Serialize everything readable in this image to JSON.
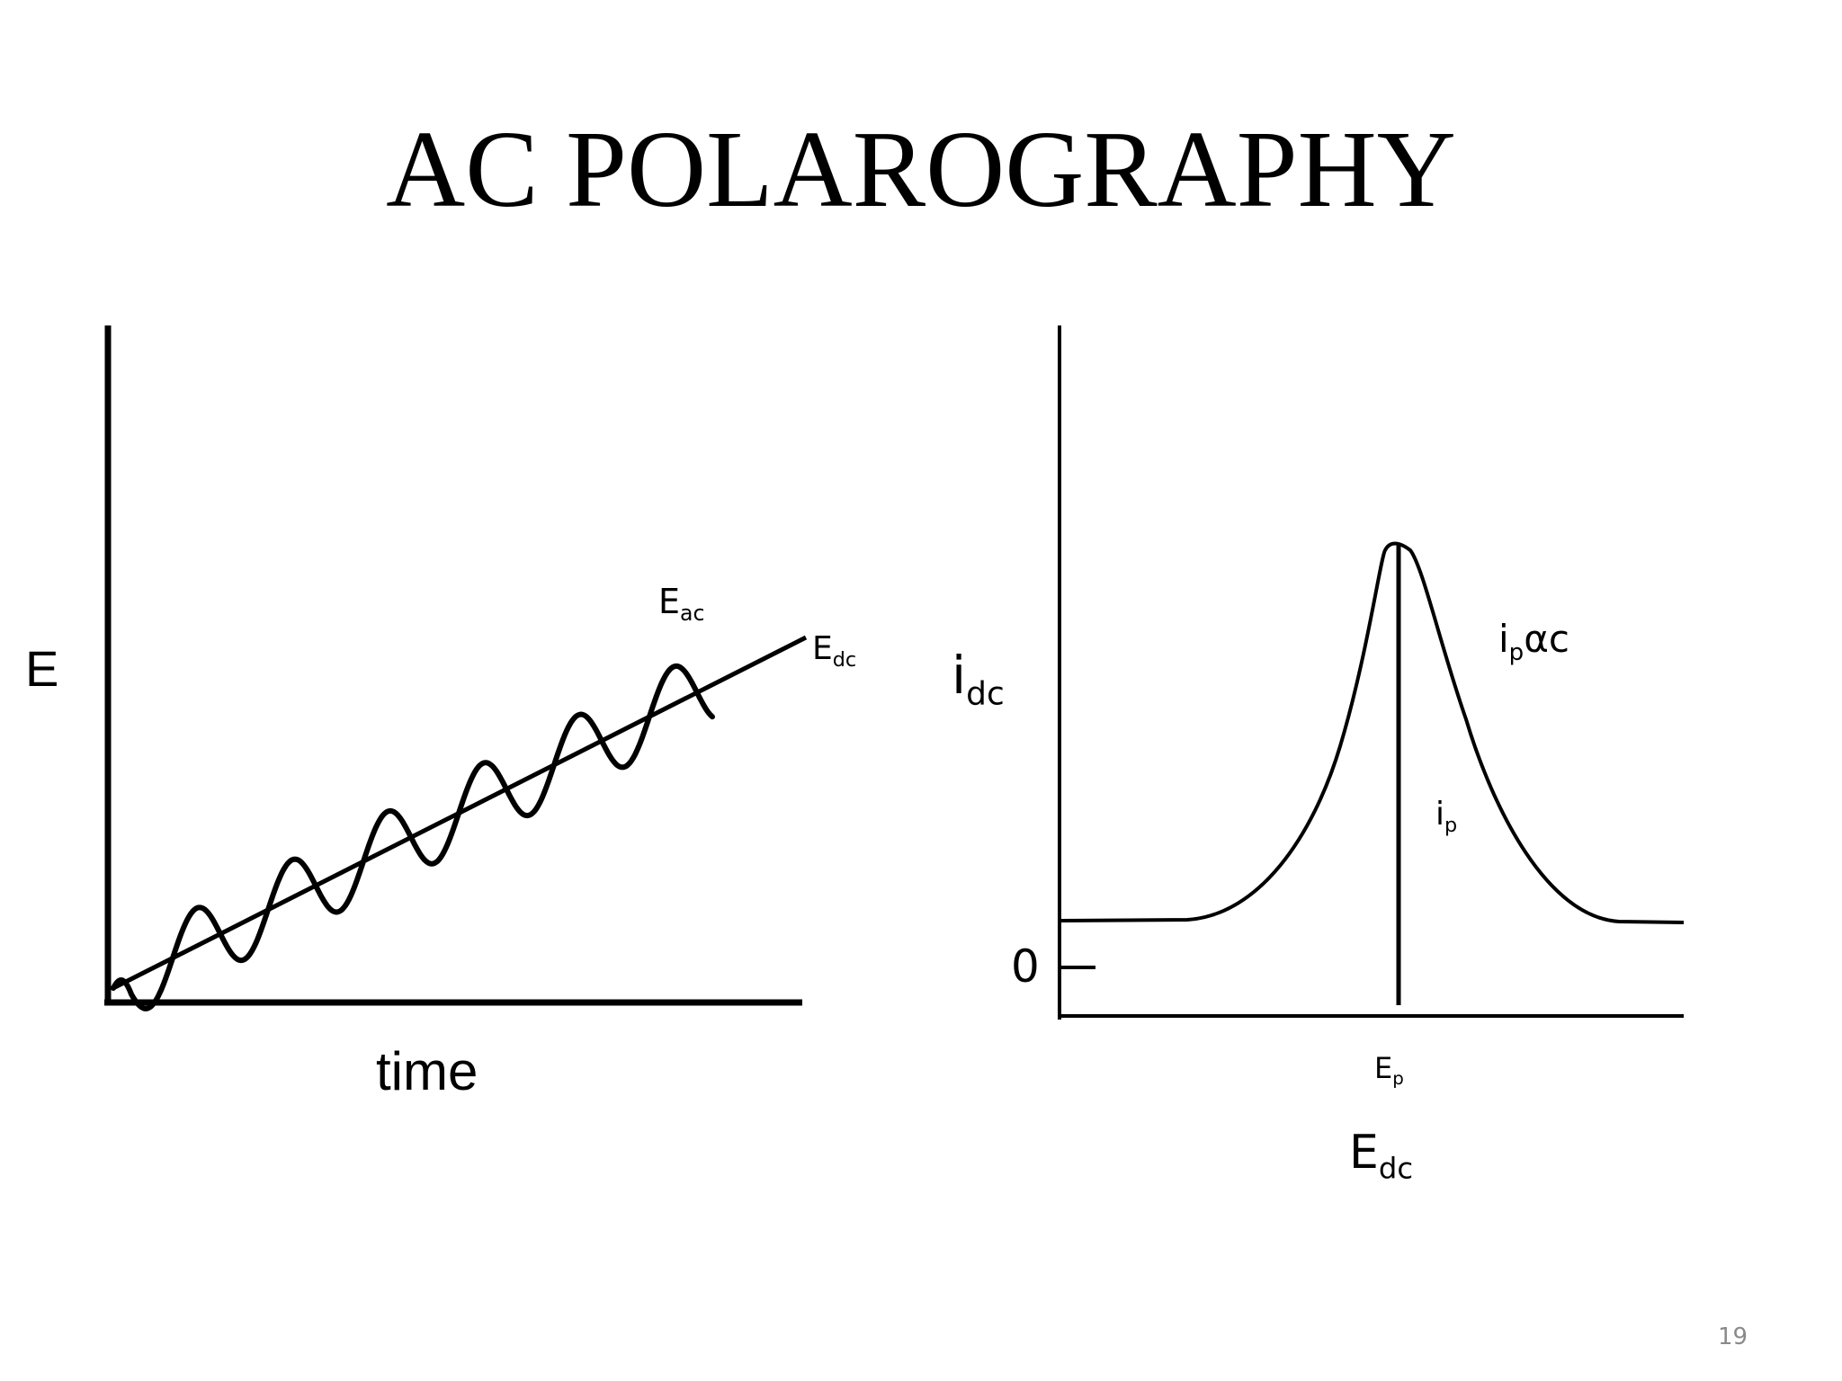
{
  "slide": {
    "title": "AC POLAROGRAPHY",
    "page_number": "19"
  },
  "left_diagram": {
    "y_axis_label": "E",
    "x_axis_label": "time",
    "ac_label": {
      "base": "E",
      "sub": "ac"
    },
    "dc_label": {
      "base": "E",
      "sub": "dc"
    }
  },
  "right_diagram": {
    "y_axis_label": {
      "base": "i",
      "sub": "dc"
    },
    "x_axis_label": {
      "base": "E",
      "sub": "dc"
    },
    "zero_label": "0",
    "peak_potential_label": {
      "base": "E",
      "sub": "p"
    },
    "peak_current_label": {
      "base": "i",
      "sub": "p"
    },
    "proportionality_label": {
      "base": "i",
      "sub": "p",
      "rest": "αc"
    }
  },
  "colors": {
    "ink": "#000000",
    "page_number": "#8a8a8a",
    "background": "#ffffff"
  }
}
